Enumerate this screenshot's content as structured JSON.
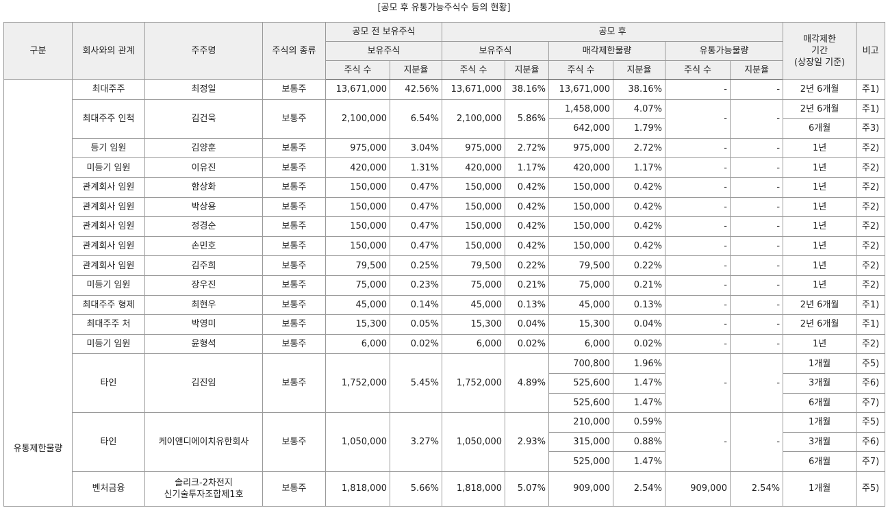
{
  "title": "[공모 후 유통가능주식수 등의 현황]",
  "header": {
    "row1": [
      "구분",
      "회사와의 관계",
      "주주명",
      "주식의 종류",
      "공모 전 보유주식",
      "공모 후",
      "매각제한\n기간\n(상장일 기준)",
      "비고"
    ],
    "row2": [
      "보유주식",
      "보유주식",
      "매각제한물량",
      "유통가능물량"
    ],
    "row3": [
      "주식 수",
      "지분율",
      "주식 수",
      "지분율",
      "주식 수",
      "지분율",
      "주식 수",
      "지분율"
    ]
  },
  "body": {
    "category": "유통제한물량",
    "rows": [
      {
        "relation": "최대주주",
        "holder": "최정일",
        "type": "보통주",
        "pre_shares": "13,671,000",
        "pre_pct": "42.56%",
        "post_shares": "13,671,000",
        "post_pct": "38.16%",
        "restricted": [
          {
            "shares": "13,671,000",
            "pct": "38.16%",
            "period": "2년 6개월",
            "note": "주1)"
          }
        ],
        "float_shares": "-",
        "float_pct": "-"
      },
      {
        "relation": "최대주주 인척",
        "holder": "김건욱",
        "type": "보통주",
        "pre_shares": "2,100,000",
        "pre_pct": "6.54%",
        "post_shares": "2,100,000",
        "post_pct": "5.86%",
        "restricted": [
          {
            "shares": "1,458,000",
            "pct": "4.07%",
            "period": "2년 6개월",
            "note": "주1)"
          },
          {
            "shares": "642,000",
            "pct": "1.79%",
            "period": "6개월",
            "note": "주3)"
          }
        ],
        "float_shares": "-",
        "float_pct": "-"
      },
      {
        "relation": "등기 임원",
        "holder": "김양훈",
        "type": "보통주",
        "pre_shares": "975,000",
        "pre_pct": "3.04%",
        "post_shares": "975,000",
        "post_pct": "2.72%",
        "restricted": [
          {
            "shares": "975,000",
            "pct": "2.72%",
            "period": "1년",
            "note": "주2)"
          }
        ],
        "float_shares": "-",
        "float_pct": "-"
      },
      {
        "relation": "미등기 임원",
        "holder": "이유진",
        "type": "보통주",
        "pre_shares": "420,000",
        "pre_pct": "1.31%",
        "post_shares": "420,000",
        "post_pct": "1.17%",
        "restricted": [
          {
            "shares": "420,000",
            "pct": "1.17%",
            "period": "1년",
            "note": "주2)"
          }
        ],
        "float_shares": "-",
        "float_pct": "-"
      },
      {
        "relation": "관계회사 임원",
        "holder": "함상화",
        "type": "보통주",
        "pre_shares": "150,000",
        "pre_pct": "0.47%",
        "post_shares": "150,000",
        "post_pct": "0.42%",
        "restricted": [
          {
            "shares": "150,000",
            "pct": "0.42%",
            "period": "1년",
            "note": "주2)"
          }
        ],
        "float_shares": "-",
        "float_pct": "-"
      },
      {
        "relation": "관계회사 임원",
        "holder": "박상용",
        "type": "보통주",
        "pre_shares": "150,000",
        "pre_pct": "0.47%",
        "post_shares": "150,000",
        "post_pct": "0.42%",
        "restricted": [
          {
            "shares": "150,000",
            "pct": "0.42%",
            "period": "1년",
            "note": "주2)"
          }
        ],
        "float_shares": "-",
        "float_pct": "-"
      },
      {
        "relation": "관계회사 임원",
        "holder": "정경순",
        "type": "보통주",
        "pre_shares": "150,000",
        "pre_pct": "0.47%",
        "post_shares": "150,000",
        "post_pct": "0.42%",
        "restricted": [
          {
            "shares": "150,000",
            "pct": "0.42%",
            "period": "1년",
            "note": "주2)"
          }
        ],
        "float_shares": "-",
        "float_pct": "-"
      },
      {
        "relation": "관계회사 임원",
        "holder": "손민호",
        "type": "보통주",
        "pre_shares": "150,000",
        "pre_pct": "0.47%",
        "post_shares": "150,000",
        "post_pct": "0.42%",
        "restricted": [
          {
            "shares": "150,000",
            "pct": "0.42%",
            "period": "1년",
            "note": "주2)"
          }
        ],
        "float_shares": "-",
        "float_pct": "-"
      },
      {
        "relation": "관계회사 임원",
        "holder": "김주희",
        "type": "보통주",
        "pre_shares": "79,500",
        "pre_pct": "0.25%",
        "post_shares": "79,500",
        "post_pct": "0.22%",
        "restricted": [
          {
            "shares": "79,500",
            "pct": "0.22%",
            "period": "1년",
            "note": "주2)"
          }
        ],
        "float_shares": "-",
        "float_pct": "-"
      },
      {
        "relation": "미등기 임원",
        "holder": "장우진",
        "type": "보통주",
        "pre_shares": "75,000",
        "pre_pct": "0.23%",
        "post_shares": "75,000",
        "post_pct": "0.21%",
        "restricted": [
          {
            "shares": "75,000",
            "pct": "0.21%",
            "period": "1년",
            "note": "주2)"
          }
        ],
        "float_shares": "-",
        "float_pct": "-"
      },
      {
        "relation": "최대주주 형제",
        "holder": "최현우",
        "type": "보통주",
        "pre_shares": "45,000",
        "pre_pct": "0.14%",
        "post_shares": "45,000",
        "post_pct": "0.13%",
        "restricted": [
          {
            "shares": "45,000",
            "pct": "0.13%",
            "period": "2년 6개월",
            "note": "주1)"
          }
        ],
        "float_shares": "-",
        "float_pct": "-"
      },
      {
        "relation": "최대주주 처",
        "holder": "박영미",
        "type": "보통주",
        "pre_shares": "15,300",
        "pre_pct": "0.05%",
        "post_shares": "15,300",
        "post_pct": "0.04%",
        "restricted": [
          {
            "shares": "15,300",
            "pct": "0.04%",
            "period": "2년 6개월",
            "note": "주1)"
          }
        ],
        "float_shares": "-",
        "float_pct": "-"
      },
      {
        "relation": "미등기 임원",
        "holder": "윤형석",
        "type": "보통주",
        "pre_shares": "6,000",
        "pre_pct": "0.02%",
        "post_shares": "6,000",
        "post_pct": "0.02%",
        "restricted": [
          {
            "shares": "6,000",
            "pct": "0.02%",
            "period": "1년",
            "note": "주2)"
          }
        ],
        "float_shares": "-",
        "float_pct": "-"
      },
      {
        "relation": "타인",
        "holder": "김진임",
        "type": "보통주",
        "pre_shares": "1,752,000",
        "pre_pct": "5.45%",
        "post_shares": "1,752,000",
        "post_pct": "4.89%",
        "restricted": [
          {
            "shares": "700,800",
            "pct": "1.96%",
            "period": "1개월",
            "note": "주5)"
          },
          {
            "shares": "525,600",
            "pct": "1.47%",
            "period": "3개월",
            "note": "주6)"
          },
          {
            "shares": "525,600",
            "pct": "1.47%",
            "period": "6개월",
            "note": "주7)"
          }
        ],
        "float_shares": "-",
        "float_pct": "-"
      },
      {
        "relation": "타인",
        "holder": "케이앤디에이치유한회사",
        "type": "보통주",
        "pre_shares": "1,050,000",
        "pre_pct": "3.27%",
        "post_shares": "1,050,000",
        "post_pct": "2.93%",
        "restricted": [
          {
            "shares": "210,000",
            "pct": "0.59%",
            "period": "1개월",
            "note": "주5)"
          },
          {
            "shares": "315,000",
            "pct": "0.88%",
            "period": "3개월",
            "note": "주6)"
          },
          {
            "shares": "525,000",
            "pct": "1.47%",
            "period": "6개월",
            "note": "주7)"
          }
        ],
        "float_shares": "-",
        "float_pct": "-"
      },
      {
        "relation": "벤처금융",
        "holder": "솔리크-2차전지\n신기술투자조합제1호",
        "type": "보통주",
        "pre_shares": "1,818,000",
        "pre_pct": "5.66%",
        "post_shares": "1,818,000",
        "post_pct": "5.07%",
        "restricted": [
          {
            "shares": "909,000",
            "pct": "2.54%",
            "period": "1개월",
            "note": "주5)"
          }
        ],
        "float_shares": "909,000",
        "float_pct": "2.54%"
      }
    ]
  }
}
